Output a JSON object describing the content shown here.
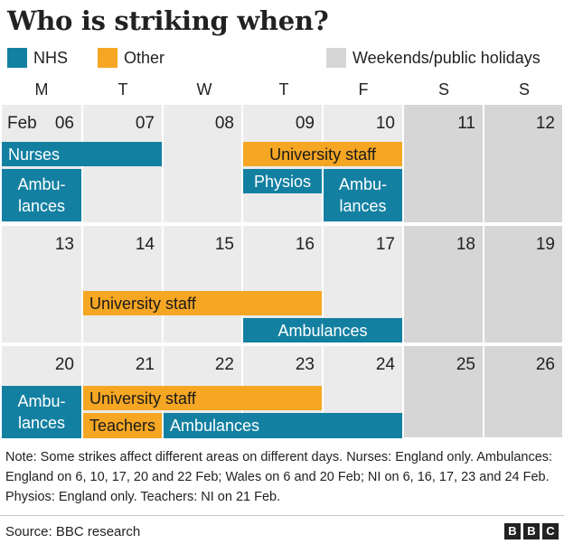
{
  "title": "Who is striking when?",
  "legend": [
    {
      "label": "NHS",
      "color": "#1380A1"
    },
    {
      "label": "Other",
      "color": "#F5A623"
    },
    {
      "label": "Weekends/public holidays",
      "color": "#D6D6D6"
    }
  ],
  "chart_data": {
    "type": "table",
    "weekday_headers": [
      "M",
      "T",
      "W",
      "T",
      "F",
      "S",
      "S"
    ],
    "month_label": "Feb",
    "weeks": [
      [
        "06",
        "07",
        "08",
        "09",
        "10",
        "11",
        "12"
      ],
      [
        "13",
        "14",
        "15",
        "16",
        "17",
        "18",
        "19"
      ],
      [
        "20",
        "21",
        "22",
        "23",
        "24",
        "25",
        "26"
      ]
    ],
    "weekend_columns": [
      5,
      6
    ],
    "strikes": [
      {
        "label": "Nurses",
        "type": "NHS",
        "days": [
          6,
          7
        ]
      },
      {
        "label": "University staff",
        "type": "Other",
        "days": [
          9,
          10
        ]
      },
      {
        "label": "Physios",
        "type": "NHS",
        "days": [
          9
        ]
      },
      {
        "label": "Ambu-\nlances",
        "type": "NHS",
        "days": [
          6
        ]
      },
      {
        "label": "Ambu-\nlances",
        "type": "NHS",
        "days": [
          10
        ]
      },
      {
        "label": "University staff",
        "type": "Other",
        "days": [
          14,
          15,
          16
        ]
      },
      {
        "label": "Ambulances",
        "type": "NHS",
        "days": [
          16,
          17
        ]
      },
      {
        "label": "Ambu-\nlances",
        "type": "NHS",
        "days": [
          20
        ]
      },
      {
        "label": "University staff",
        "type": "Other",
        "days": [
          21,
          22,
          23
        ]
      },
      {
        "label": "Teachers",
        "type": "Other",
        "days": [
          21
        ]
      },
      {
        "label": "Ambulances",
        "type": "NHS",
        "days": [
          22,
          23,
          24
        ]
      }
    ]
  },
  "note": "Note: Some strikes affect different areas on different days. Nurses: England only. Ambulances: England on 6, 10, 17, 20 and 22 Feb; Wales on 6 and 20 Feb; NI on 6, 16, 17, 23 and 24 Feb. Physios: England only. Teachers: NI on 21 Feb.",
  "source": "Source: BBC research",
  "logo_letters": [
    "B",
    "B",
    "C"
  ]
}
